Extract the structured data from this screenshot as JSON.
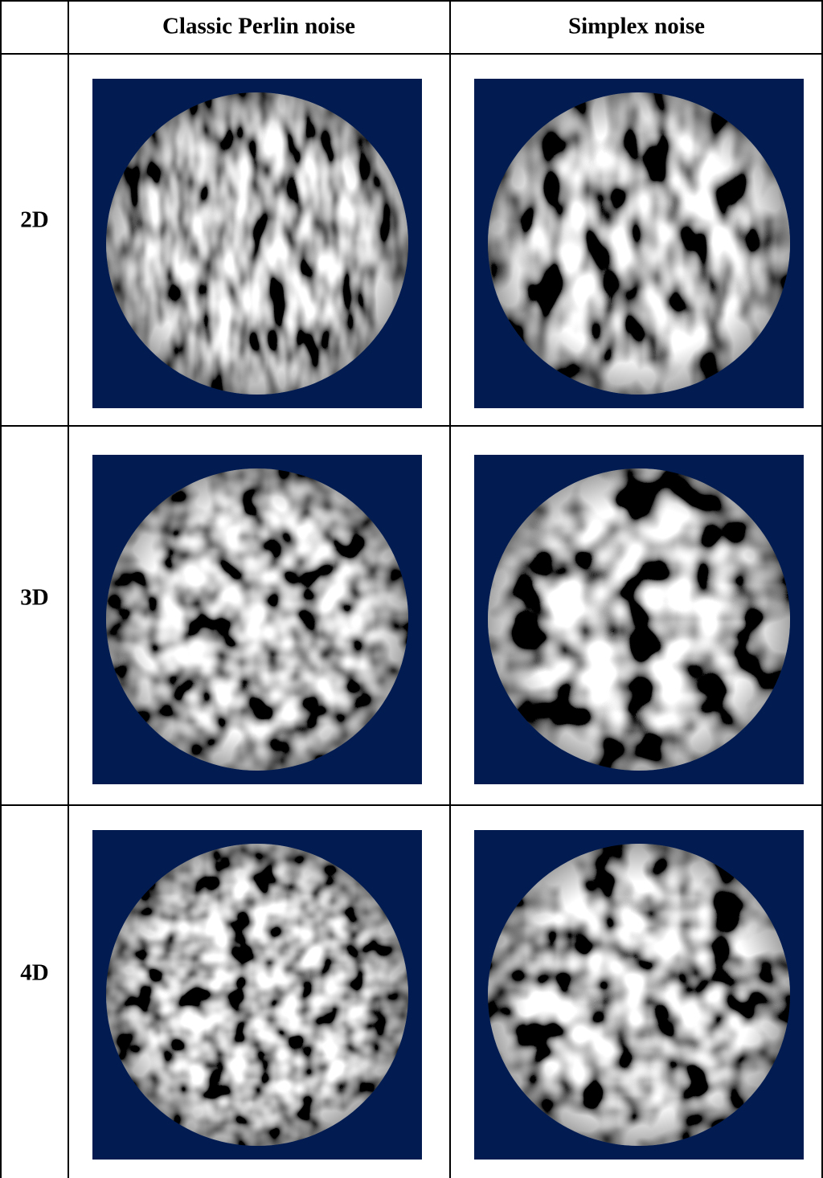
{
  "table": {
    "columns": [
      "Classic Perlin noise",
      "Simplex noise"
    ],
    "rows": [
      "2D",
      "3D",
      "4D"
    ]
  }
}
